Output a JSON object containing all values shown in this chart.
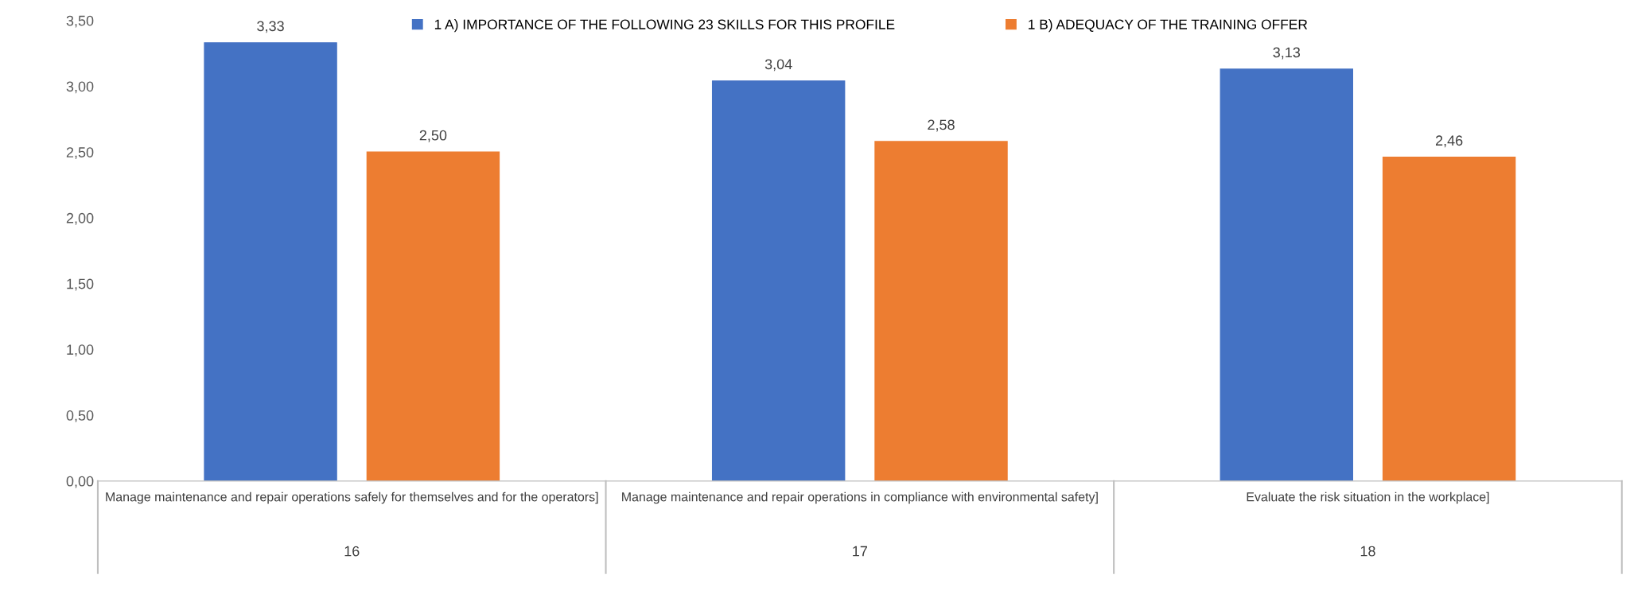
{
  "chart_data": {
    "type": "bar",
    "categories": [
      "Manage maintenance and repair operations safely for themselves and for the operators]",
      "Manage maintenance and repair operations in compliance with environmental safety]",
      "Evaluate the risk situation in the workplace]"
    ],
    "series": [
      {
        "name": "1 A) IMPORTANCE OF THE FOLLOWING 23 SKILLS FOR THIS PROFILE",
        "color": "#4472c4",
        "values": [
          3.33,
          3.04,
          3.13
        ]
      },
      {
        "name": "1 B) ADEQUACY OF THE TRAINING OFFER",
        "color": "#ed7d31",
        "values": [
          2.5,
          2.58,
          2.46
        ]
      }
    ],
    "value_labels": [
      [
        "3,33",
        "3,04",
        "3,13"
      ],
      [
        "2,50",
        "2,58",
        "2,46"
      ]
    ],
    "annotations": [
      "16",
      "17",
      "18"
    ],
    "ylim": [
      0,
      3.5
    ],
    "yticks": [
      {
        "value": 0,
        "label": "0,00"
      },
      {
        "value": 0.5,
        "label": "0,50"
      },
      {
        "value": 1,
        "label": "1,00"
      },
      {
        "value": 1.5,
        "label": "1,50"
      },
      {
        "value": 2,
        "label": "2,00"
      },
      {
        "value": 2.5,
        "label": "2,50"
      },
      {
        "value": 3,
        "label": "3,00"
      },
      {
        "value": 3.5,
        "label": "3,50"
      }
    ],
    "grid": false,
    "legend": "top"
  }
}
